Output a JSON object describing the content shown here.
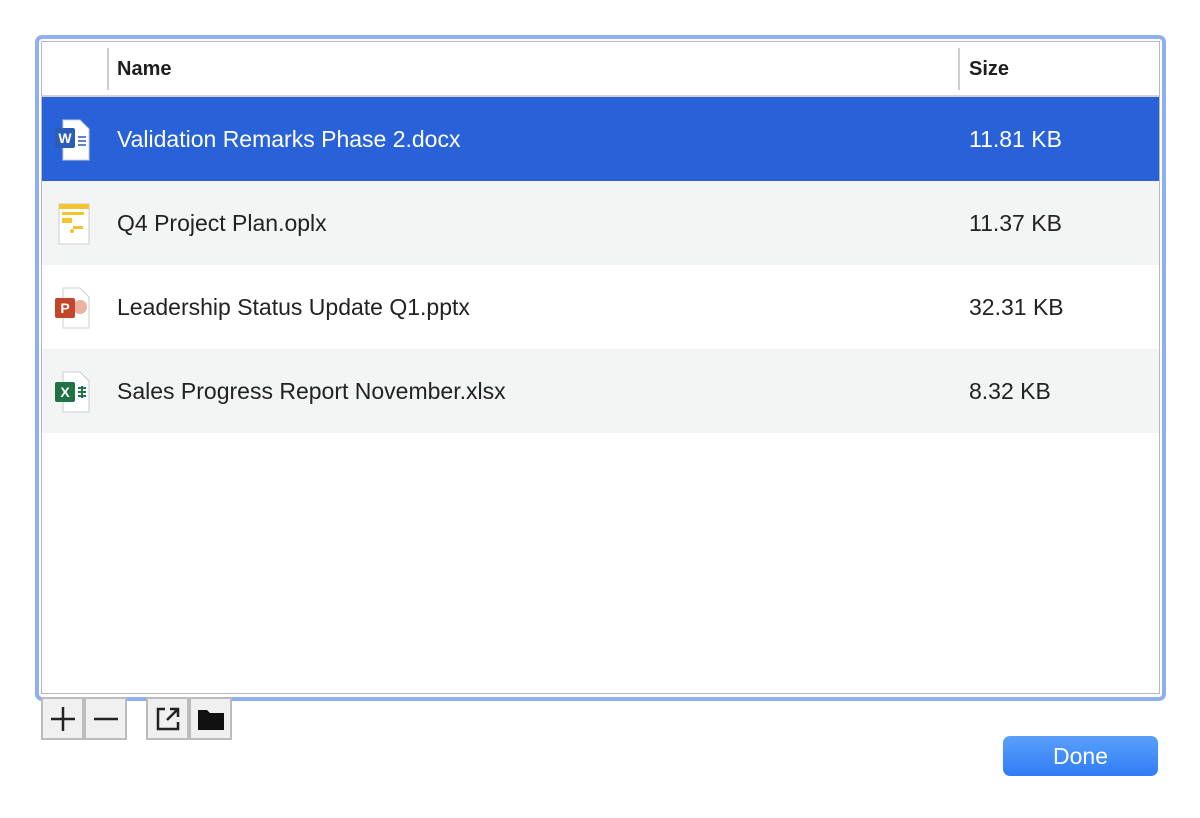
{
  "table": {
    "columns": {
      "name": "Name",
      "size": "Size"
    },
    "rows": [
      {
        "name": "Validation Remarks Phase 2.docx",
        "size": "11.81 KB",
        "icon": "word-document-icon",
        "selected": true
      },
      {
        "name": "Q4 Project Plan.oplx",
        "size": "11.37 KB",
        "icon": "omniplan-document-icon",
        "selected": false
      },
      {
        "name": "Leadership Status Update Q1.pptx",
        "size": "32.31 KB",
        "icon": "powerpoint-document-icon",
        "selected": false
      },
      {
        "name": "Sales Progress Report November.xlsx",
        "size": "8.32 KB",
        "icon": "excel-document-icon",
        "selected": false
      }
    ]
  },
  "toolbar": {
    "add": "add-icon",
    "remove": "minus-icon",
    "open": "open-external-icon",
    "reveal": "folder-icon"
  },
  "done_label": "Done",
  "colors": {
    "selection": "#2962d8",
    "focus_ring": "#8fb0f0",
    "done": "#3a86f7"
  }
}
